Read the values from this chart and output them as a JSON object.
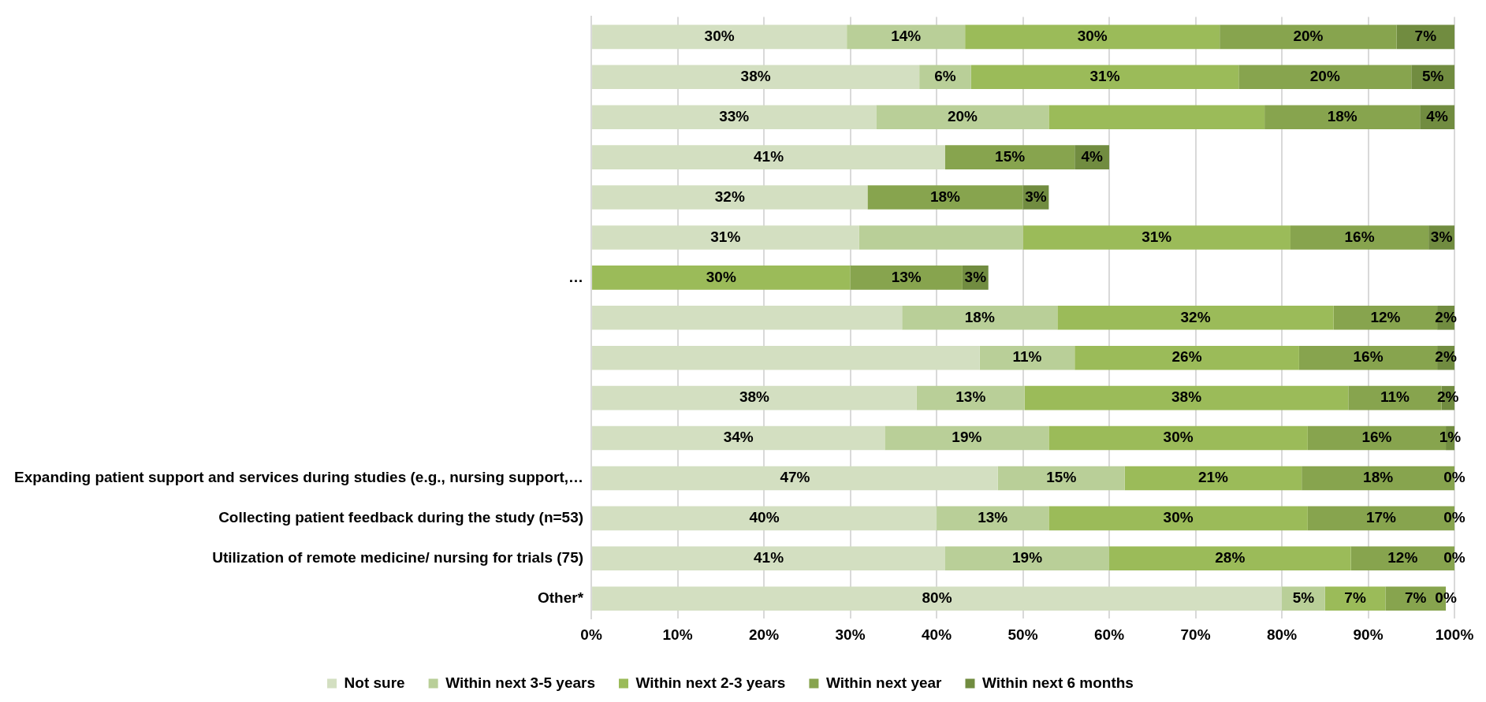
{
  "chart_data": {
    "type": "bar",
    "orientation": "horizontal",
    "stacked": true,
    "grid": "x",
    "legend": "bottom",
    "categories": [
      null,
      null,
      null,
      null,
      null,
      null,
      "…",
      null,
      null,
      null,
      null,
      "Expanding patient support and services during studies (e.g., nursing support,…",
      "Collecting patient feedback during the study (n=53)",
      "Utilization of remote medicine/ nursing for trials (75)",
      "Other*"
    ],
    "xlim": [
      0,
      100
    ],
    "xticks": [
      {
        "value": 0,
        "label": "0%"
      },
      {
        "value": 10,
        "label": "10%"
      },
      {
        "value": 20,
        "label": "20%"
      },
      {
        "value": 30,
        "label": "30%"
      },
      {
        "value": 40,
        "label": "40%"
      },
      {
        "value": 50,
        "label": "50%"
      },
      {
        "value": 60,
        "label": "60%"
      },
      {
        "value": 70,
        "label": "70%"
      },
      {
        "value": 80,
        "label": "80%"
      },
      {
        "value": 90,
        "label": "90%"
      },
      {
        "value": 100,
        "label": "100%"
      }
    ],
    "series": [
      {
        "name": "Not sure",
        "color": "#d3dfc1",
        "values": [
          29.6,
          38,
          33,
          41,
          32,
          31,
          null,
          36,
          45,
          37.7,
          34,
          47.1,
          40,
          41,
          80
        ],
        "value_labels": [
          "30%",
          "38%",
          "33%",
          "41%",
          "32%",
          "31%",
          null,
          null,
          null,
          "38%",
          "34%",
          "47%",
          "40%",
          "41%",
          "80%"
        ]
      },
      {
        "name": "Within next 3-5 years",
        "color": "#b9cf98",
        "values": [
          13.7,
          6,
          20,
          null,
          null,
          19,
          null,
          18,
          11,
          12.5,
          19,
          14.7,
          13,
          19,
          5
        ],
        "value_labels": [
          "14%",
          "6%",
          "20%",
          null,
          null,
          null,
          null,
          "18%",
          "11%",
          "13%",
          "19%",
          "15%",
          "13%",
          "19%",
          "5%"
        ]
      },
      {
        "name": "Within next 2-3 years",
        "color": "#9bbb59",
        "values": [
          29.5,
          31,
          25,
          null,
          null,
          31,
          30,
          32,
          26,
          37.5,
          30,
          20.5,
          30,
          28,
          7
        ],
        "value_labels": [
          "30%",
          "31%",
          null,
          null,
          null,
          "31%",
          "30%",
          "32%",
          "26%",
          "38%",
          "30%",
          "21%",
          "30%",
          "28%",
          "7%"
        ]
      },
      {
        "name": "Within next year",
        "color": "#87a44e",
        "values": [
          20.5,
          20,
          18,
          15,
          18,
          16,
          13,
          12,
          16,
          10.8,
          16,
          17.7,
          17,
          12,
          7
        ],
        "value_labels": [
          "20%",
          "20%",
          "18%",
          "15%",
          "18%",
          "16%",
          "13%",
          "12%",
          "16%",
          "11%",
          "16%",
          "18%",
          "17%",
          "12%",
          "7%"
        ]
      },
      {
        "name": "Within next 6 months",
        "color": "#718c40",
        "values": [
          6.7,
          5,
          4,
          4,
          3,
          3,
          3,
          2,
          2,
          1.5,
          1,
          0,
          0,
          0,
          0
        ],
        "value_labels": [
          "7%",
          "5%",
          "4%",
          "4%",
          "3%",
          "3%",
          "3%",
          "2%",
          "2%",
          "2%",
          "1%",
          "0%",
          "0%",
          "0%",
          "0%"
        ]
      }
    ]
  }
}
